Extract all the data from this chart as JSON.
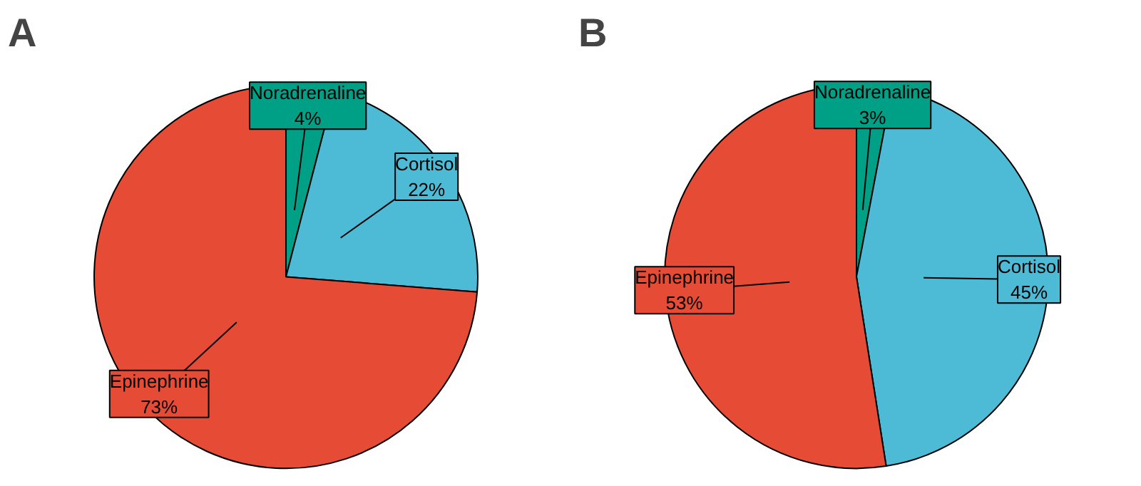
{
  "chart_data": [
    {
      "type": "pie",
      "title": "A",
      "categories": [
        "Noradrenaline",
        "Cortisol",
        "Epinephrine"
      ],
      "values": [
        4,
        22,
        73
      ],
      "value_labels": [
        "4%",
        "22%",
        "73%"
      ],
      "colors": [
        "#00a087",
        "#4dbbd5",
        "#e64b35"
      ]
    },
    {
      "type": "pie",
      "title": "B",
      "categories": [
        "Noradrenaline",
        "Cortisol",
        "Epinephrine"
      ],
      "values": [
        3,
        45,
        53
      ],
      "value_labels": [
        "3%",
        "45%",
        "53%"
      ],
      "colors": [
        "#00a087",
        "#4dbbd5",
        "#e64b35"
      ]
    }
  ]
}
